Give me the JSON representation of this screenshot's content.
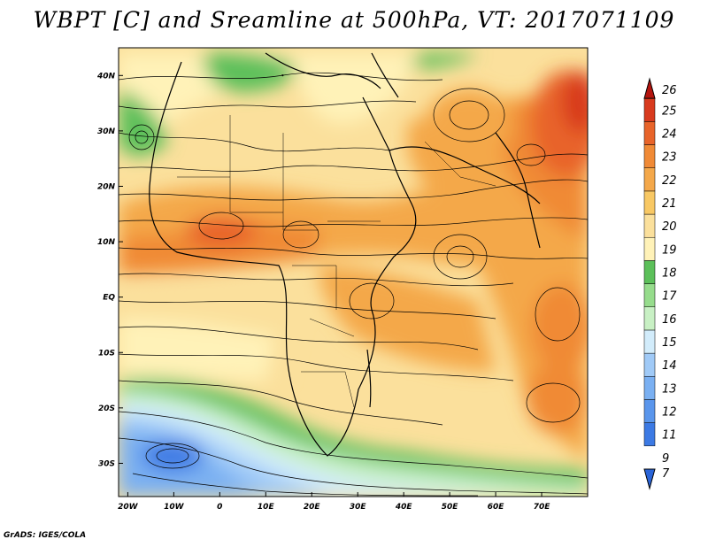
{
  "title": "WBPT [C] and Sreamline at 500hPa, VT: 2017071109",
  "credit": "GrADS: IGES/COLA",
  "map": {
    "lon_range": [
      -22,
      80
    ],
    "lat_range": [
      -36,
      45
    ],
    "lon_ticks": [
      {
        "value": -20,
        "label": "20W"
      },
      {
        "value": -10,
        "label": "10W"
      },
      {
        "value": 0,
        "label": "0"
      },
      {
        "value": 10,
        "label": "10E"
      },
      {
        "value": 20,
        "label": "20E"
      },
      {
        "value": 30,
        "label": "30E"
      },
      {
        "value": 40,
        "label": "40E"
      },
      {
        "value": 50,
        "label": "50E"
      },
      {
        "value": 60,
        "label": "60E"
      },
      {
        "value": 70,
        "label": "70E"
      }
    ],
    "lat_ticks": [
      {
        "value": 40,
        "label": "40N"
      },
      {
        "value": 30,
        "label": "30N"
      },
      {
        "value": 20,
        "label": "20N"
      },
      {
        "value": 10,
        "label": "10N"
      },
      {
        "value": 0,
        "label": "EQ"
      },
      {
        "value": -10,
        "label": "10S"
      },
      {
        "value": -20,
        "label": "20S"
      },
      {
        "value": -30,
        "label": "30S"
      }
    ]
  },
  "colorbar": {
    "labels": [
      "7",
      "9",
      "11",
      "12",
      "13",
      "14",
      "15",
      "16",
      "17",
      "18",
      "19",
      "20",
      "21",
      "22",
      "23",
      "24",
      "25",
      "26"
    ],
    "colors": [
      "#2a64d8",
      "#3c7ae4",
      "#5a96ec",
      "#7ab0f2",
      "#a0caf7",
      "#d2ecfb",
      "#c8f0c4",
      "#96dc8c",
      "#5cc05a",
      "#fff2b8",
      "#fbe09c",
      "#f8c864",
      "#f4a84a",
      "#f08a36",
      "#e8642a",
      "#d83a1e",
      "#b4140e"
    ]
  }
}
